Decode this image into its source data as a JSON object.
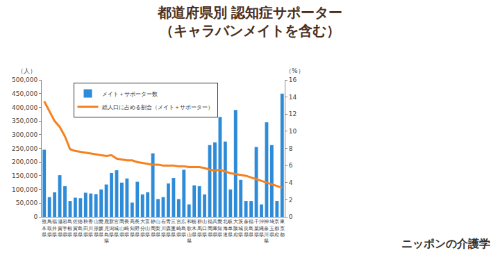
{
  "chart_data": {
    "type": "bar",
    "title": "都道府県別 認知症サポーター",
    "subtitle": "（キャラバンメイトを含む）",
    "ylabel": "（人）",
    "y2label": "（%）",
    "categories": [
      "熊本県",
      "鳥取県",
      "福井県",
      "滋賀県",
      "岩手県",
      "島根県",
      "佐賀県",
      "徳島県",
      "秋田県",
      "香川県",
      "山形県",
      "愛媛県",
      "鹿児島県",
      "新潟県",
      "宮城県",
      "岡山県",
      "長崎県",
      "高知県",
      "長野県",
      "大分県",
      "富山県",
      "静岡県",
      "山梨県",
      "石川県",
      "青森県",
      "三重県",
      "宮崎県",
      "広島県",
      "和歌山県",
      "栃木県",
      "群馬県",
      "山口県",
      "福岡県",
      "兵庫県",
      "愛知県",
      "北海道",
      "岐阜県",
      "大阪府",
      "茨城県",
      "奈良県",
      "福島県",
      "千葉県",
      "沖縄県",
      "神奈川県",
      "埼玉県",
      "京都府",
      "東京都"
    ],
    "series": [
      {
        "name": "メイト＋サポーター数",
        "type": "bar",
        "color": "#2e8bd8",
        "values": [
          245000,
          72000,
          90000,
          152000,
          112000,
          58000,
          70000,
          68000,
          88000,
          85000,
          83000,
          100000,
          118000,
          160000,
          170000,
          125000,
          140000,
          52000,
          128000,
          82000,
          90000,
          232000,
          65000,
          72000,
          122000,
          142000,
          65000,
          172000,
          45000,
          115000,
          112000,
          82000,
          262000,
          272000,
          365000,
          275000,
          100000,
          390000,
          135000,
          58000,
          58000,
          255000,
          45000,
          345000,
          262000,
          58000,
          450000
        ]
      },
      {
        "name": "総人口に占める割合（メイト＋サポーター）",
        "type": "line",
        "color": "#f5821f",
        "axis": "y2",
        "values": [
          13.5,
          12.4,
          11.2,
          10.5,
          9.4,
          7.9,
          7.7,
          7.6,
          7.5,
          7.4,
          7.3,
          7.2,
          7.1,
          7.2,
          6.8,
          6.7,
          6.6,
          6.6,
          6.4,
          6.3,
          6.2,
          6.1,
          6.1,
          6.0,
          6.0,
          6.0,
          5.9,
          5.9,
          5.8,
          5.8,
          5.8,
          5.7,
          5.5,
          5.4,
          5.5,
          5.3,
          5.1,
          5.0,
          4.9,
          4.8,
          4.6,
          4.4,
          4.2,
          4.0,
          3.8,
          3.6,
          3.4
        ]
      }
    ],
    "ylim": [
      0,
      500000
    ],
    "yticks": [
      0,
      {
        "value": 50000,
        "label": "50,000"
      },
      {
        "value": 100000,
        "label": "100,000"
      },
      {
        "value": 150000,
        "label": "150,000"
      },
      {
        "value": 200000,
        "label": "200,000"
      },
      {
        "value": 250000,
        "label": "250,000"
      },
      {
        "value": 300000,
        "label": "300,000"
      },
      {
        "value": 350000,
        "label": "350,000"
      },
      {
        "value": 400000,
        "label": "400,000"
      },
      {
        "value": 450000,
        "label": "450,000"
      },
      {
        "value": 500000,
        "label": "500,000"
      }
    ],
    "y2lim": [
      0,
      16
    ],
    "y2ticks": [
      0,
      2,
      4,
      6,
      8,
      10,
      12,
      14,
      16
    ],
    "legend": "upper left",
    "grid": false,
    "annotations": [
      {
        "text": "ニッポンの介護学"
      }
    ]
  }
}
